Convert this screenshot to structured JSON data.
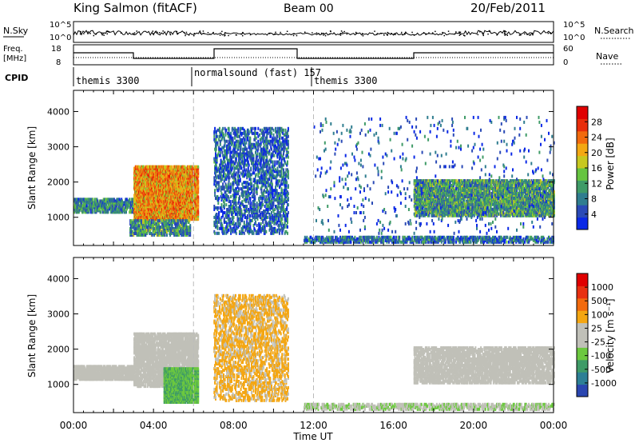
{
  "header": {
    "station": "King Salmon (fitACF)",
    "beam": "Beam 00",
    "date": "20/Feb/2011"
  },
  "strip_labels": {
    "nsky": "N.Sky",
    "nsearch": "N.Search",
    "freq_top": "Freq.",
    "freq_unit": "[MHz]",
    "nave": "Nave",
    "cpid": "CPID",
    "nsky_ticks": [
      "10^5",
      "10^0"
    ],
    "freq_ticks": [
      "18",
      "8"
    ],
    "nave_ticks": [
      "60",
      "0"
    ]
  },
  "cpid_segments": [
    {
      "label": "themis 3300",
      "start_hour": 0,
      "end_hour": 6
    },
    {
      "label": "normalsound (fast) 157",
      "start_hour": 6,
      "end_hour": 12
    },
    {
      "label": "themis 3300",
      "start_hour": 12,
      "end_hour": 24
    }
  ],
  "chart_data": [
    {
      "type": "heatmap",
      "panel": "power",
      "ylabel": "Slant Range [km]",
      "ylim": [
        200,
        4600
      ],
      "yticks": [
        1000,
        2000,
        3000,
        4000
      ],
      "xlim_hours": [
        0,
        24
      ],
      "colorbar": {
        "label": "Power [dB]",
        "range": [
          0,
          32
        ],
        "ticks": [
          "28",
          "24",
          "20",
          "16",
          "12",
          "8",
          "4"
        ],
        "colors": [
          "#0a28e6",
          "#2a4ab6",
          "#2f7d8f",
          "#3f9b67",
          "#66c440",
          "#c7c820",
          "#f3a813",
          "#f26a0d",
          "#e82d0a",
          "#e00000"
        ]
      },
      "regions": [
        {
          "x": [
            0,
            3
          ],
          "y": [
            1100,
            1500
          ],
          "density": 0.55,
          "value": 9
        },
        {
          "x": [
            3,
            6.2
          ],
          "y": [
            900,
            2400
          ],
          "density": 0.8,
          "value": 22
        },
        {
          "x": [
            2.8,
            5.8
          ],
          "y": [
            450,
            900
          ],
          "density": 0.5,
          "value": 10
        },
        {
          "x": [
            7,
            10.7
          ],
          "y": [
            500,
            3500
          ],
          "density": 0.28,
          "value": 6
        },
        {
          "x": [
            11.5,
            24
          ],
          "y": [
            250,
            400
          ],
          "density": 0.5,
          "value": 7
        },
        {
          "x": [
            17,
            24
          ],
          "y": [
            1000,
            2000
          ],
          "density": 0.6,
          "value": 11
        },
        {
          "x": [
            12,
            24
          ],
          "y": [
            500,
            3800
          ],
          "density": 0.02,
          "value": 5
        }
      ]
    },
    {
      "type": "heatmap",
      "panel": "velocity",
      "ylabel": "Slant Range [km]",
      "xlabel": "Time UT",
      "ylim": [
        200,
        4600
      ],
      "yticks": [
        1000,
        2000,
        3000,
        4000
      ],
      "xlim_hours": [
        0,
        24
      ],
      "xticks": [
        "00:00",
        "04:00",
        "08:00",
        "12:00",
        "16:00",
        "20:00",
        "00:00"
      ],
      "colorbar": {
        "label": "Velocity [m s⁻¹]",
        "range": [
          -1200,
          1200
        ],
        "ticks": [
          "1000",
          "500",
          "100",
          "25",
          "-25",
          "-100",
          "-500",
          "-1000"
        ],
        "colors": [
          "#2a46b0",
          "#2d7f95",
          "#3f9b67",
          "#6cc83f",
          "#c0c0b8",
          "#c0c0b8",
          "#f4a612",
          "#f26a0d",
          "#e83010",
          "#e00000"
        ]
      },
      "regions": [
        {
          "x": [
            0,
            3
          ],
          "y": [
            1100,
            1500
          ],
          "density": 0.7,
          "value": 0
        },
        {
          "x": [
            3,
            6.2
          ],
          "y": [
            900,
            2400
          ],
          "density": 0.6,
          "value": 0
        },
        {
          "x": [
            4.5,
            6.2
          ],
          "y": [
            450,
            1400
          ],
          "density": 0.9,
          "value": -450
        },
        {
          "x": [
            7,
            10.7
          ],
          "y": [
            500,
            3500
          ],
          "density": 0.3,
          "value": 300
        },
        {
          "x": [
            11.5,
            24
          ],
          "y": [
            250,
            400
          ],
          "density": 0.5,
          "value": -200
        },
        {
          "x": [
            17,
            24
          ],
          "y": [
            1000,
            2000
          ],
          "density": 0.55,
          "value": 0
        }
      ]
    }
  ]
}
